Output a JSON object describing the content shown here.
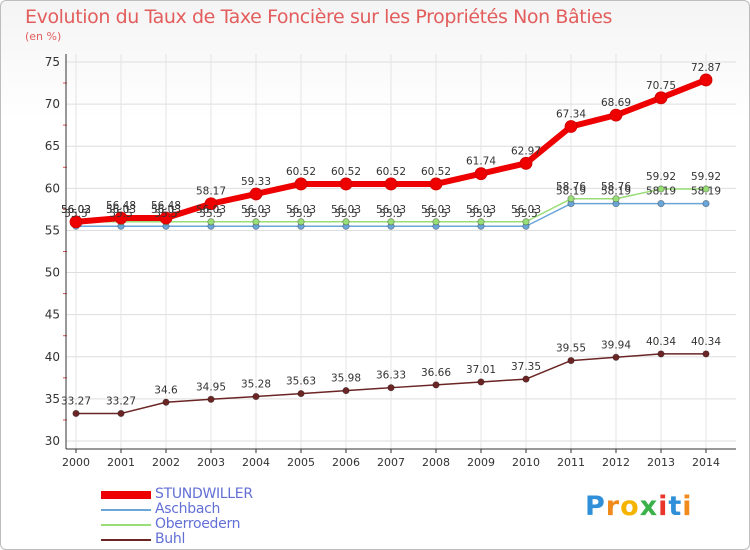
{
  "title": "Evolution du Taux de Taxe Foncière sur les Propriétés Non Bâties",
  "subtitle": "(en %)",
  "brand": {
    "letters": [
      "P",
      "r",
      "o",
      "x",
      "i",
      "t",
      "i"
    ],
    "colors": [
      "#2f8fd8",
      "#f08a1c",
      "#f4b400",
      "#3bb14a",
      "#e8362d",
      "#2f8fd8",
      "#f08a1c"
    ]
  },
  "chart_data": {
    "type": "line",
    "title": "Evolution du Taux de Taxe Foncière sur les Propriétés Non Bâties",
    "ylabel": "(en %)",
    "x": [
      "2000",
      "2001",
      "2002",
      "2003",
      "2004",
      "2005",
      "2006",
      "2007",
      "2008",
      "2009",
      "2010",
      "2011",
      "2012",
      "2013",
      "2014"
    ],
    "ylim": [
      30,
      75
    ],
    "yticks": [
      "30",
      "35",
      "40",
      "45",
      "50",
      "55",
      "60",
      "65",
      "70",
      "75"
    ],
    "series": [
      {
        "name": "STUNDWILLER",
        "color": "#ee0000",
        "values": [
          56.02,
          56.48,
          56.48,
          58.17,
          59.33,
          60.52,
          60.52,
          60.52,
          60.52,
          61.74,
          62.97,
          67.34,
          68.69,
          70.75,
          72.87
        ],
        "labels": [
          "56.02",
          "56.48",
          "56.48",
          "58.17",
          "59.33",
          "60.52",
          "60.52",
          "60.52",
          "60.52",
          "61.74",
          "62.97",
          "67.34",
          "68.69",
          "70.75",
          "72.87"
        ]
      },
      {
        "name": "Aschbach",
        "color": "#6aa6d8",
        "values": [
          55.5,
          55.5,
          55.5,
          55.5,
          55.5,
          55.5,
          55.5,
          55.5,
          55.5,
          55.5,
          55.5,
          58.19,
          58.19,
          58.19,
          58.19
        ],
        "labels": [
          "55.5",
          "55.5",
          "55.5",
          "55.5",
          "55.5",
          "55.5",
          "55.5",
          "55.5",
          "55.5",
          "55.5",
          "55.5",
          "58.19",
          "58.19",
          "58.19",
          "58.19"
        ]
      },
      {
        "name": "Oberroedern",
        "color": "#99dd77",
        "values": [
          56.03,
          56.03,
          56.03,
          56.03,
          56.03,
          56.03,
          56.03,
          56.03,
          56.03,
          56.03,
          56.03,
          58.76,
          58.76,
          59.92,
          59.92
        ],
        "labels": [
          "56.03",
          "56.03",
          "56.03",
          "56.03",
          "56.03",
          "56.03",
          "56.03",
          "56.03",
          "56.03",
          "56.03",
          "56.03",
          "58.76",
          "58.76",
          "59.92",
          "59.92"
        ]
      },
      {
        "name": "Buhl",
        "color": "#6b2525",
        "values": [
          33.27,
          33.27,
          34.6,
          34.95,
          35.28,
          35.63,
          35.98,
          36.33,
          36.66,
          37.01,
          37.35,
          39.55,
          39.94,
          40.34,
          40.34
        ],
        "labels": [
          "33.27",
          "33.27",
          "34.6",
          "34.95",
          "35.28",
          "35.63",
          "35.98",
          "36.33",
          "36.66",
          "37.01",
          "37.35",
          "39.55",
          "39.94",
          "40.34",
          "40.34"
        ]
      }
    ]
  }
}
